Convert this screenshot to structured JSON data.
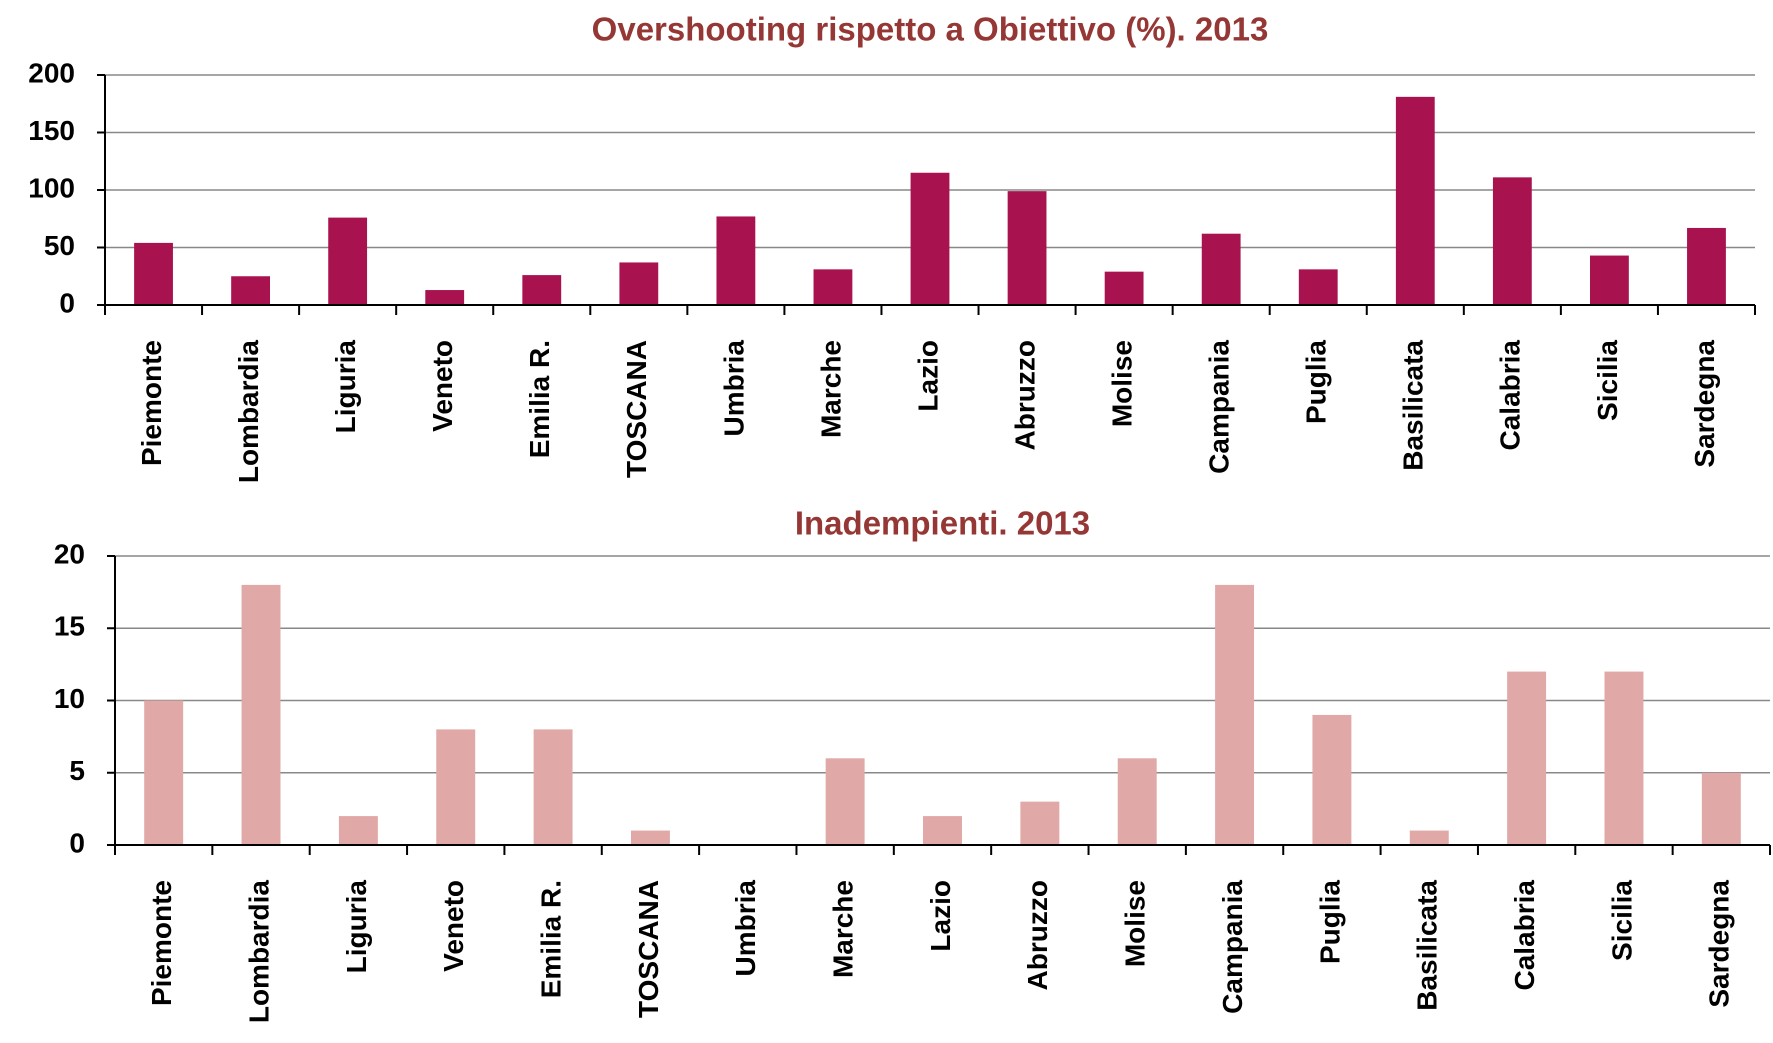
{
  "chart_data": [
    {
      "type": "bar",
      "title": "Overshooting rispetto a Obiettivo (%). 2013",
      "categories": [
        "Piemonte",
        "Lombardia",
        "Liguria",
        "Veneto",
        "Emilia R.",
        "TOSCANA",
        "Umbria",
        "Marche",
        "Lazio",
        "Abruzzo",
        "Molise",
        "Campania",
        "Puglia",
        "Basilicata",
        "Calabria",
        "Sicilia",
        "Sardegna"
      ],
      "values": [
        54,
        25,
        76,
        13,
        26,
        37,
        77,
        31,
        115,
        99,
        29,
        62,
        31,
        181,
        111,
        43,
        67
      ],
      "color": "#a8124f",
      "ylim": [
        0,
        200
      ],
      "yticks": [
        0,
        50,
        100,
        150,
        200
      ],
      "grid": true
    },
    {
      "type": "bar",
      "title": "Inadempienti. 2013",
      "categories": [
        "Piemonte",
        "Lombardia",
        "Liguria",
        "Veneto",
        "Emilia R.",
        "TOSCANA",
        "Umbria",
        "Marche",
        "Lazio",
        "Abruzzo",
        "Molise",
        "Campania",
        "Puglia",
        "Basilicata",
        "Calabria",
        "Sicilia",
        "Sardegna"
      ],
      "values": [
        10,
        18,
        2,
        8,
        8,
        1,
        0,
        6,
        2,
        3,
        6,
        18,
        9,
        1,
        12,
        12,
        5
      ],
      "color": "#e0a8a6",
      "ylim": [
        0,
        20
      ],
      "yticks": [
        0,
        5,
        10,
        15,
        20
      ],
      "grid": true
    }
  ]
}
